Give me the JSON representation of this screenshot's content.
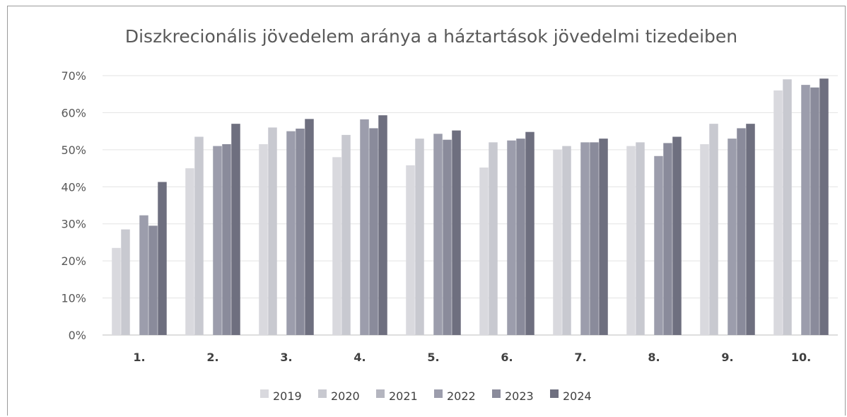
{
  "chart_data": {
    "type": "bar",
    "title": "Diszkrecionális jövedelem aránya a háztartások jövedelmi tizedeiben",
    "categories": [
      "1.",
      "2.",
      "3.",
      "4.",
      "5.",
      "6.",
      "7.",
      "8.",
      "9.",
      "10."
    ],
    "ylim": [
      0,
      70
    ],
    "yticks": [
      "0%",
      "10%",
      "20%",
      "30%",
      "40%",
      "50%",
      "60%",
      "70%"
    ],
    "grid": true,
    "legend_position": "bottom",
    "series": [
      {
        "name": "2019",
        "color": "#d9d9de",
        "values": [
          23.5,
          45.0,
          51.5,
          48.0,
          45.8,
          45.2,
          50.0,
          51.0,
          51.5,
          66.0
        ]
      },
      {
        "name": "2020",
        "color": "#c8c9d0",
        "values": [
          28.5,
          53.5,
          56.0,
          54.0,
          53.0,
          52.0,
          51.0,
          52.0,
          57.0,
          69.0
        ]
      },
      {
        "name": "2021",
        "color": "#ffffff",
        "values": [
          0,
          0,
          0,
          0,
          0,
          0,
          0,
          0,
          0,
          0
        ]
      },
      {
        "name": "2022",
        "color": "#9c9dac",
        "values": [
          32.3,
          51.0,
          55.0,
          58.2,
          54.3,
          52.5,
          52.0,
          48.3,
          53.0,
          67.5
        ]
      },
      {
        "name": "2023",
        "color": "#8a8b9b",
        "values": [
          29.5,
          51.5,
          55.7,
          55.8,
          52.7,
          53.0,
          52.0,
          51.8,
          55.8,
          66.8
        ]
      },
      {
        "name": "2024",
        "color": "#6e6f7f",
        "values": [
          41.3,
          57.0,
          58.3,
          59.3,
          55.2,
          54.8,
          53.0,
          53.5,
          57.0,
          69.2
        ]
      }
    ],
    "legend_colors": [
      "#d9d9de",
      "#c8c9d0",
      "#b4b5bf",
      "#9c9dac",
      "#8a8b9b",
      "#6e6f7f"
    ]
  }
}
